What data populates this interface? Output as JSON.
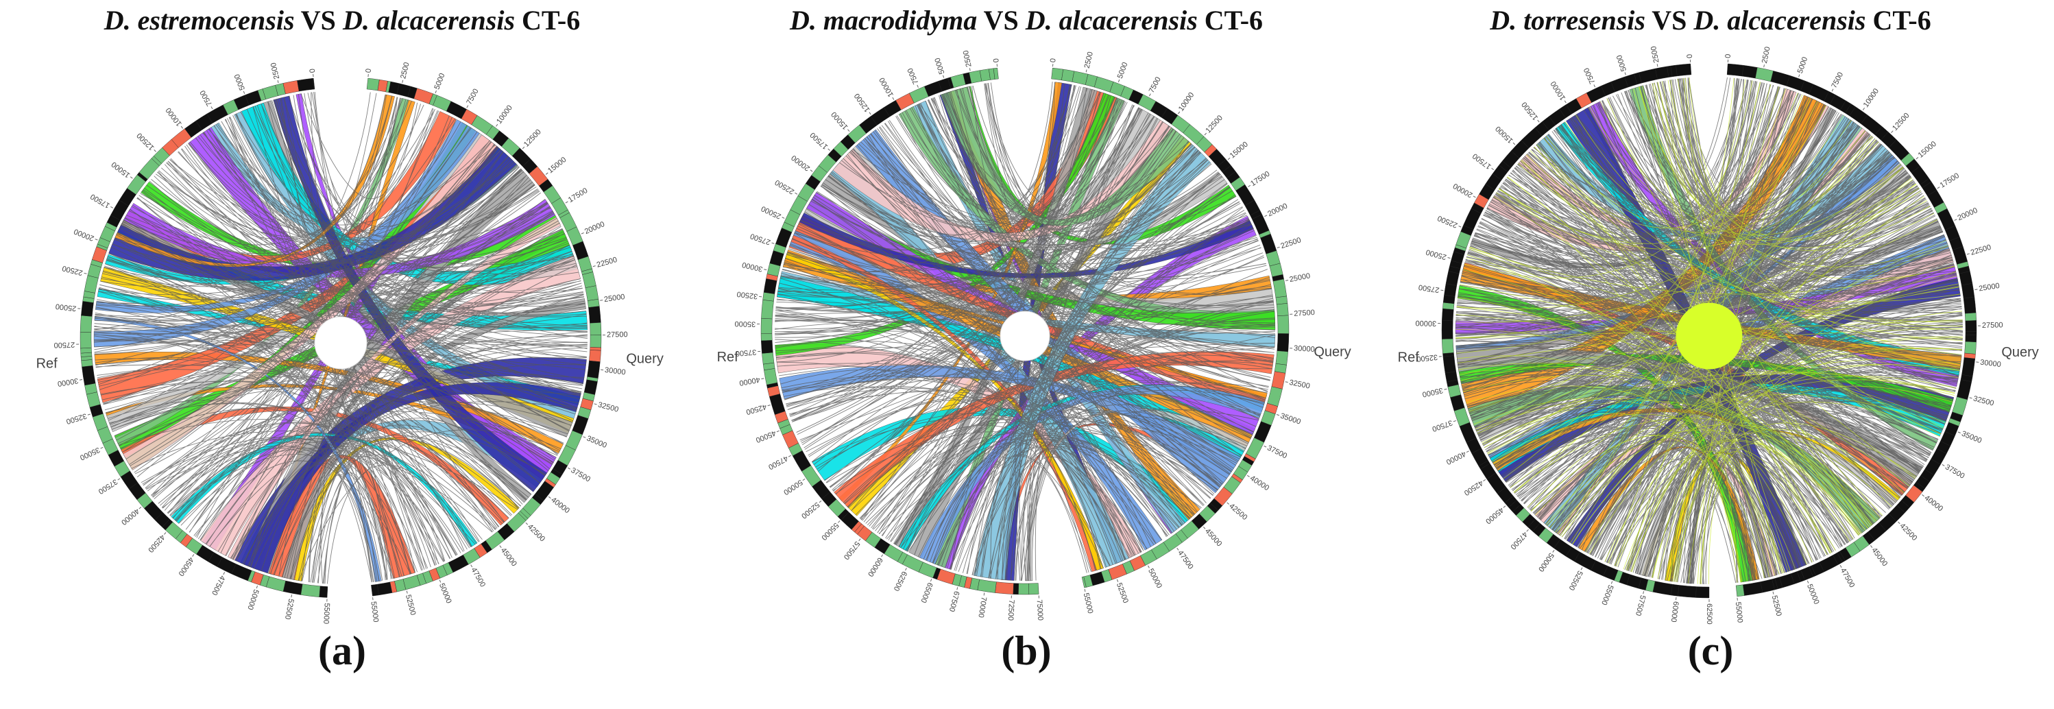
{
  "colors": {
    "gray": "#555555",
    "ideogram_green": "#6fc27a",
    "ideogram_black": "#111111",
    "ideogram_red": "#f26b4f",
    "center_c": "#d8ff2a",
    "ribbon_palette": [
      "#a64dff",
      "#6a9de8",
      "#7fc2de",
      "#ffd400",
      "#ff6a45",
      "#00e0e6",
      "#34e01a",
      "#ff9a1a",
      "#f7c6c8",
      "#a7a7a7",
      "#2e2ea8",
      "#c9c9c9",
      "#7bc47f"
    ]
  },
  "panels": [
    {
      "id": "a",
      "title_species1": "D. estremocensis",
      "title_vs": "VS",
      "title_species2": "D. alcacerensis",
      "title_strain": "CT-6",
      "label": "(a)",
      "ref_label": "Ref",
      "query_label": "Query",
      "ref_ticks": [
        "0",
        "2500",
        "5000",
        "7500",
        "10000",
        "12500",
        "15000",
        "17500",
        "20000",
        "22500",
        "25000",
        "27500",
        "30000",
        "32500",
        "35000",
        "37500",
        "40000",
        "42500",
        "45000",
        "47500",
        "50000",
        "52500",
        "55000"
      ],
      "query_ticks": [
        "0",
        "2500",
        "5000",
        "7500",
        "10000",
        "12500",
        "15000",
        "17500",
        "20000",
        "22500",
        "25000",
        "27500",
        "30000",
        "32500",
        "35000",
        "37500",
        "40000",
        "42500",
        "45000",
        "47500",
        "50000",
        "52500",
        "55000"
      ]
    },
    {
      "id": "b",
      "title_species1": "D. macrodidyma",
      "title_vs": "VS",
      "title_species2": "D. alcacerensis",
      "title_strain": "CT-6",
      "label": "(b)",
      "ref_label": "Ref",
      "query_label": "Query",
      "ref_ticks": [
        "0",
        "2500",
        "5000",
        "7500",
        "10000",
        "12500",
        "15000",
        "17500",
        "20000",
        "22500",
        "25000",
        "27500",
        "30000",
        "32500",
        "35000",
        "37500",
        "40000",
        "42500",
        "45000",
        "47500",
        "50000",
        "52500",
        "55000",
        "57500",
        "60000",
        "62500",
        "65000",
        "67500",
        "70000",
        "72500",
        "75000"
      ],
      "query_ticks": [
        "0",
        "2500",
        "5000",
        "7500",
        "10000",
        "12500",
        "15000",
        "17500",
        "20000",
        "22500",
        "25000",
        "27500",
        "30000",
        "32500",
        "35000",
        "37500",
        "40000",
        "42500",
        "45000",
        "47500",
        "50000",
        "52500",
        "55000"
      ]
    },
    {
      "id": "c",
      "title_species1": "D. torresensis",
      "title_vs": "VS",
      "title_species2": "D. alcacerensis",
      "title_strain": "CT-6",
      "label": "(c)",
      "ref_label": "Ref",
      "query_label": "Query",
      "ref_ticks": [
        "0",
        "2500",
        "5000",
        "7500",
        "10000",
        "12500",
        "15000",
        "17500",
        "20000",
        "22500",
        "25000",
        "27500",
        "30000",
        "32500",
        "35000",
        "37500",
        "40000",
        "42500",
        "45000",
        "47500",
        "50000",
        "52500",
        "55000",
        "57500",
        "60000",
        "62500"
      ],
      "query_ticks": [
        "0",
        "2500",
        "5000",
        "7500",
        "10000",
        "12500",
        "15000",
        "17500",
        "20000",
        "22500",
        "25000",
        "27500",
        "30000",
        "32500",
        "35000",
        "37500",
        "40000",
        "42500",
        "45000",
        "47500",
        "50000",
        "52500",
        "55000"
      ]
    }
  ]
}
